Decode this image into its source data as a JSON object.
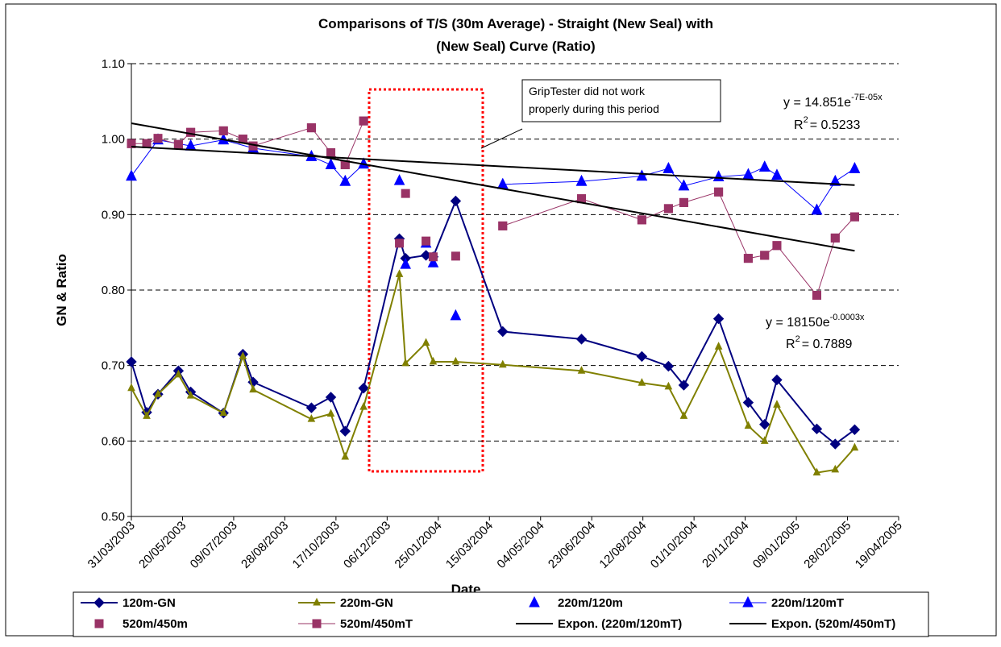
{
  "chart_data": {
    "type": "line",
    "title": [
      "Comparisons of T/S (30m Average) - Straight (New Seal)  with",
      "(New Seal)  Curve (Ratio)"
    ],
    "x_label": "Date",
    "y_label": "GN & Ratio",
    "xlim": [
      37711,
      38461
    ],
    "xticks": [
      {
        "value": 37711,
        "label": "31/03/2003"
      },
      {
        "value": 37761,
        "label": "20/05/2003"
      },
      {
        "value": 37811,
        "label": "09/07/2003"
      },
      {
        "value": 37861,
        "label": "28/08/2003"
      },
      {
        "value": 37911,
        "label": "17/10/2003"
      },
      {
        "value": 37961,
        "label": "06/12/2003"
      },
      {
        "value": 38011,
        "label": "25/01/2004"
      },
      {
        "value": 38061,
        "label": "15/03/2004"
      },
      {
        "value": 38111,
        "label": "04/05/2004"
      },
      {
        "value": 38161,
        "label": "23/06/2004"
      },
      {
        "value": 38211,
        "label": "12/08/2004"
      },
      {
        "value": 38261,
        "label": "01/10/2004"
      },
      {
        "value": 38311,
        "label": "20/11/2004"
      },
      {
        "value": 38361,
        "label": "09/01/2005"
      },
      {
        "value": 38411,
        "label": "28/02/2005"
      },
      {
        "value": 38461,
        "label": "19/04/2005"
      }
    ],
    "ylim": [
      0.5,
      1.1
    ],
    "yticks": [
      {
        "value": 0.5,
        "label": "0.50"
      },
      {
        "value": 0.6,
        "label": "0.60"
      },
      {
        "value": 0.7,
        "label": "0.70"
      },
      {
        "value": 0.8,
        "label": "0.80"
      },
      {
        "value": 0.9,
        "label": "0.90"
      },
      {
        "value": 1.0,
        "label": "1.00"
      },
      {
        "value": 1.1,
        "label": "1.10"
      }
    ],
    "grid": true,
    "legend": "bottom",
    "series": [
      {
        "name": "120m-GN",
        "color": "#000080",
        "marker": "diamond",
        "line": true,
        "x": [
          37711,
          37726,
          37737,
          37757,
          37769,
          37801,
          37820,
          37830,
          37887,
          37906,
          37920,
          37938,
          37973,
          37979,
          37999,
          38006,
          38028,
          38074,
          38151,
          38210,
          38236,
          38251,
          38285,
          38314,
          38330,
          38342,
          38381,
          38399,
          38418
        ],
        "values": [
          0.705,
          0.638,
          0.662,
          0.693,
          0.665,
          0.637,
          0.715,
          0.678,
          0.644,
          0.658,
          0.613,
          0.67,
          0.868,
          0.842,
          0.846,
          0.844,
          0.918,
          0.745,
          0.735,
          0.712,
          0.699,
          0.674,
          0.762,
          0.651,
          0.622,
          0.681,
          0.616,
          0.596,
          0.615
        ]
      },
      {
        "name": "220m-GN",
        "color": "#808000",
        "marker": "triangle-small",
        "line": true,
        "x": [
          37711,
          37726,
          37737,
          37757,
          37769,
          37801,
          37820,
          37830,
          37887,
          37906,
          37920,
          37938,
          37973,
          37979,
          37999,
          38006,
          38028,
          38074,
          38151,
          38210,
          38236,
          38251,
          38285,
          38314,
          38330,
          38342,
          38381,
          38399,
          38418
        ],
        "values": [
          0.67,
          0.633,
          0.662,
          0.688,
          0.66,
          0.637,
          0.712,
          0.668,
          0.629,
          0.636,
          0.579,
          0.645,
          0.821,
          0.703,
          0.73,
          0.705,
          0.705,
          0.701,
          0.693,
          0.677,
          0.672,
          0.633,
          0.725,
          0.62,
          0.6,
          0.648,
          0.558,
          0.562,
          0.591
        ]
      },
      {
        "name": "220m/120m",
        "color": "#0000ff",
        "marker": "triangle",
        "line": false,
        "x": [
          37711,
          37737,
          37769,
          37801,
          37830,
          37887,
          37906,
          37920,
          37938,
          37973,
          37979,
          37999,
          38006,
          38028,
          38074,
          38151,
          38210,
          38236,
          38251,
          38285,
          38314,
          38330,
          38342,
          38381,
          38399,
          38418
        ],
        "values": [
          0.951,
          0.999,
          0.991,
          0.999,
          0.988,
          0.977,
          0.966,
          0.944,
          0.967,
          0.945,
          0.834,
          0.862,
          0.836,
          0.766,
          0.94,
          0.944,
          0.951,
          0.961,
          0.938,
          0.95,
          0.953,
          0.963,
          0.952,
          0.906,
          0.944,
          0.961
        ]
      },
      {
        "name": "220m/120mT",
        "color": "#0000ff",
        "marker": "triangle",
        "line": true,
        "x": [
          37711,
          37737,
          37769,
          37801,
          37830,
          37887,
          37906,
          37920,
          37938,
          37973,
          37979,
          37999,
          38006,
          38028,
          38074,
          38151,
          38210,
          38236,
          38251,
          38285,
          38314,
          38330,
          38342,
          38381,
          38399,
          38418
        ],
        "values": [
          0.951,
          0.999,
          0.991,
          0.999,
          0.988,
          0.977,
          0.966,
          0.944,
          0.967,
          null,
          null,
          null,
          null,
          null,
          0.94,
          0.944,
          0.951,
          0.961,
          0.938,
          0.95,
          0.953,
          0.963,
          0.952,
          0.906,
          0.944,
          0.961
        ]
      },
      {
        "name": "520m/450m",
        "color": "#993366",
        "marker": "square",
        "line": false,
        "x": [
          37711,
          37726,
          37737,
          37757,
          37769,
          37801,
          37820,
          37830,
          37887,
          37906,
          37920,
          37938,
          37973,
          37979,
          37999,
          38006,
          38028,
          38074,
          38151,
          38210,
          38236,
          38251,
          38285,
          38314,
          38330,
          38342,
          38381,
          38399,
          38418
        ],
        "values": [
          0.994,
          0.994,
          1.001,
          0.993,
          1.009,
          1.011,
          1.0,
          0.991,
          1.015,
          0.982,
          0.966,
          1.024,
          0.862,
          0.928,
          0.865,
          0.844,
          0.845,
          0.885,
          0.921,
          0.893,
          0.908,
          0.916,
          0.93,
          0.842,
          0.846,
          0.859,
          0.793,
          0.869,
          0.897
        ]
      },
      {
        "name": "520m/450mT",
        "color": "#993366",
        "marker": "square",
        "line": true,
        "x": [
          37711,
          37726,
          37737,
          37757,
          37769,
          37801,
          37820,
          37830,
          37887,
          37906,
          37920,
          37938,
          37973,
          37979,
          37999,
          38006,
          38028,
          38074,
          38151,
          38210,
          38236,
          38251,
          38285,
          38314,
          38330,
          38342,
          38381,
          38399,
          38418
        ],
        "values": [
          0.994,
          0.994,
          1.001,
          0.993,
          1.009,
          1.011,
          1.0,
          0.991,
          1.015,
          0.982,
          0.966,
          1.024,
          null,
          null,
          null,
          null,
          null,
          0.885,
          0.921,
          0.893,
          0.908,
          0.916,
          0.93,
          0.842,
          0.846,
          0.859,
          0.793,
          0.869,
          0.897
        ]
      },
      {
        "name": "Expon. (220m/120mT)",
        "color": "#000000",
        "marker": "none",
        "line": true,
        "x": [
          37711,
          38418
        ],
        "values": [
          0.99,
          0.939
        ]
      },
      {
        "name": "Expon. (520m/450mT)",
        "color": "#000000",
        "marker": "none",
        "line": true,
        "x": [
          37711,
          38418
        ],
        "values": [
          1.021,
          0.852
        ]
      }
    ],
    "callout": [
      "GripTester did not work",
      "properly during this period"
    ],
    "equations": [
      {
        "base": "y = 14.851e",
        "exp": "-7E-05x",
        "r": "R",
        "r_exp": "2",
        "r_val": "= 0.5233"
      },
      {
        "base": "y = 18150e",
        "exp": "-0.0003x",
        "r": "R",
        "r_exp": "2",
        "r_val": "= 0.7889"
      }
    ]
  }
}
